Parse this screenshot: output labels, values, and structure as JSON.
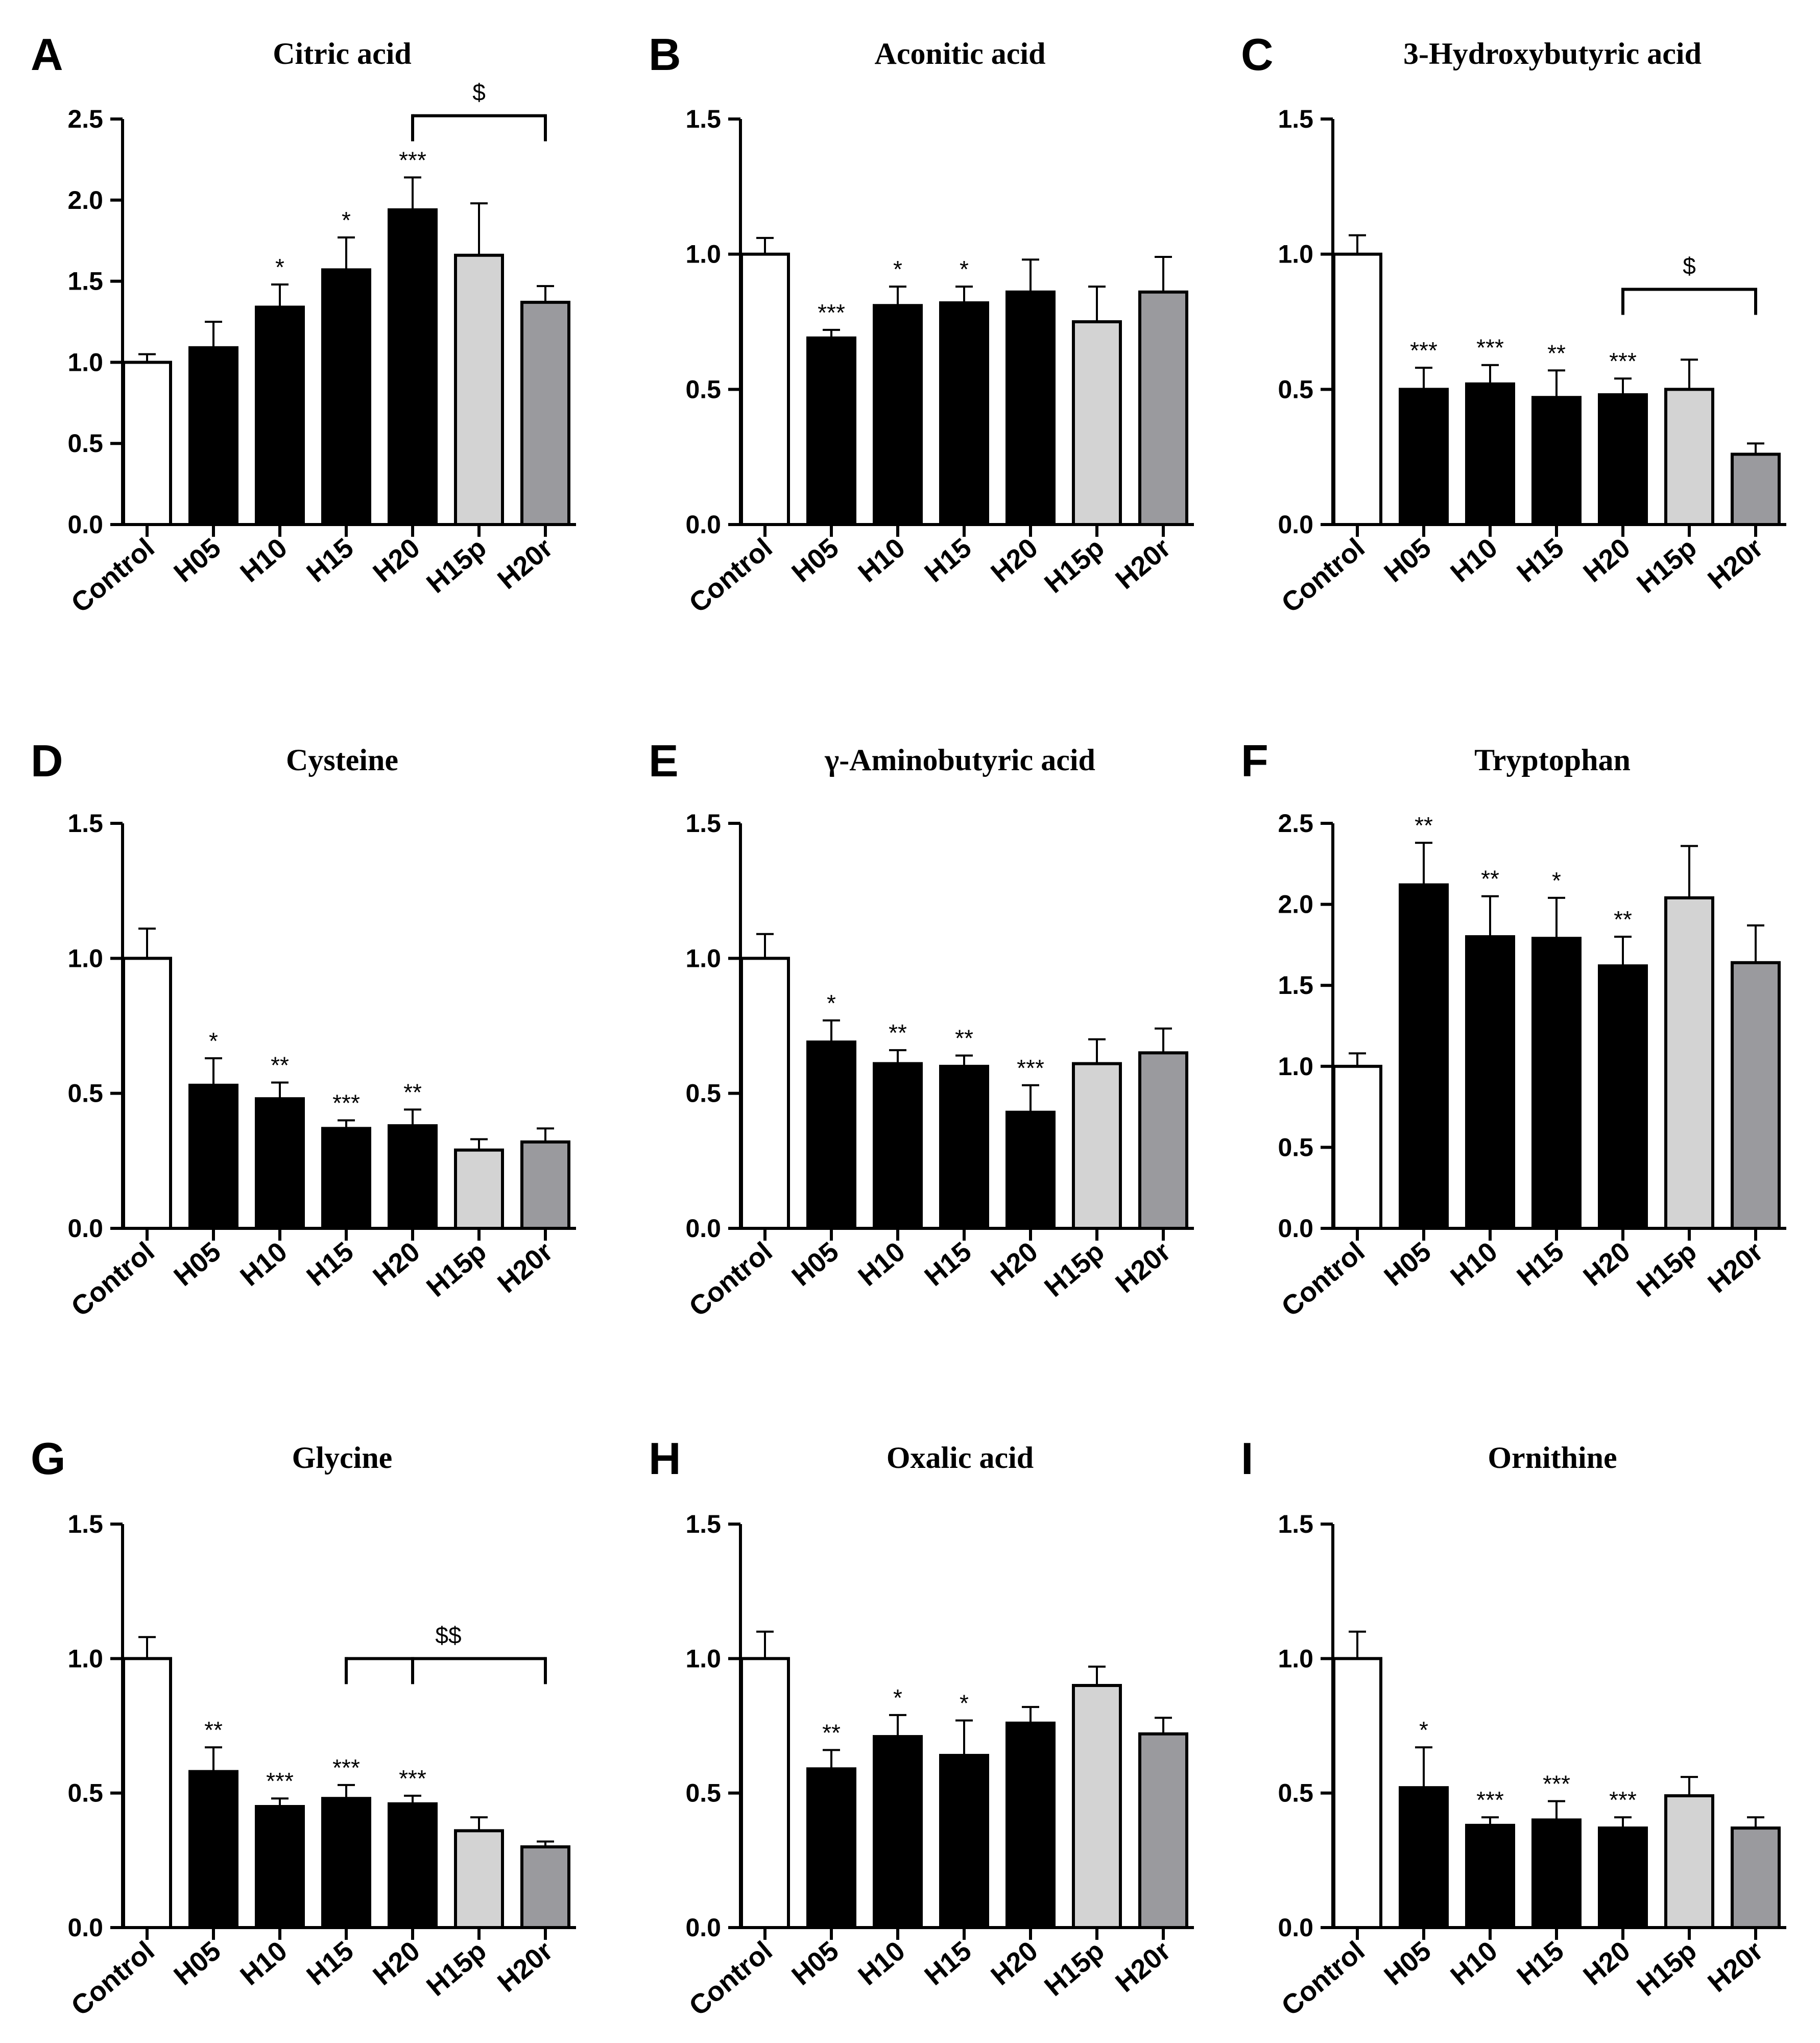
{
  "figure": {
    "categories": [
      "Control",
      "H05",
      "H10",
      "H15",
      "H20",
      "H15p",
      "H20r"
    ],
    "bar_fills": [
      "#ffffff",
      "#000000",
      "#000000",
      "#000000",
      "#000000",
      "#d3d3d3",
      "#9a9a9e"
    ]
  },
  "chart_data": [
    {
      "type": "bar",
      "panel": "A",
      "title": "Citric acid",
      "xlabel": "",
      "ylabel": "",
      "ylim": [
        0,
        2.5
      ],
      "yticks": [
        "0.0",
        "0.5",
        "1.0",
        "1.5",
        "2.0",
        "2.5"
      ],
      "categories": [
        "Control",
        "H05",
        "H10",
        "H15",
        "H20",
        "H15p",
        "H20r"
      ],
      "values": [
        1.0,
        1.09,
        1.34,
        1.57,
        1.94,
        1.66,
        1.37
      ],
      "errors": [
        0.05,
        0.16,
        0.14,
        0.2,
        0.2,
        0.32,
        0.1
      ],
      "significance": [
        "",
        "",
        "*",
        "*",
        "***",
        "",
        ""
      ],
      "brackets": [
        {
          "label": "$",
          "from": 4,
          "to": 6,
          "level": 2.52
        }
      ]
    },
    {
      "type": "bar",
      "panel": "B",
      "title": "Aconitic acid",
      "xlabel": "",
      "ylabel": "",
      "ylim": [
        0,
        1.5
      ],
      "yticks": [
        "0.0",
        "0.5",
        "1.0",
        "1.5"
      ],
      "categories": [
        "Control",
        "H05",
        "H10",
        "H15",
        "H20",
        "H15p",
        "H20r"
      ],
      "values": [
        1.0,
        0.69,
        0.81,
        0.82,
        0.86,
        0.75,
        0.86
      ],
      "errors": [
        0.06,
        0.03,
        0.07,
        0.06,
        0.12,
        0.13,
        0.13
      ],
      "significance": [
        "",
        "***",
        "*",
        "*",
        "",
        "",
        ""
      ],
      "brackets": []
    },
    {
      "type": "bar",
      "panel": "C",
      "title": "3-Hydroxybutyric acid",
      "xlabel": "",
      "ylabel": "",
      "ylim": [
        0,
        1.5
      ],
      "yticks": [
        "0.0",
        "0.5",
        "1.0",
        "1.5"
      ],
      "categories": [
        "Control",
        "H05",
        "H10",
        "H15",
        "H20",
        "H15p",
        "H20r"
      ],
      "values": [
        1.0,
        0.5,
        0.52,
        0.47,
        0.48,
        0.5,
        0.26
      ],
      "errors": [
        0.07,
        0.08,
        0.07,
        0.1,
        0.06,
        0.11,
        0.04
      ],
      "significance": [
        "",
        "***",
        "***",
        "**",
        "***",
        "",
        ""
      ],
      "brackets": [
        {
          "label": "$",
          "from": 4,
          "to": 6,
          "level": 0.87
        }
      ]
    },
    {
      "type": "bar",
      "panel": "D",
      "title": "Cysteine",
      "xlabel": "",
      "ylabel": "",
      "ylim": [
        0,
        1.5
      ],
      "yticks": [
        "0.0",
        "0.5",
        "1.0",
        "1.5"
      ],
      "categories": [
        "Control",
        "H05",
        "H10",
        "H15",
        "H20",
        "H15p",
        "H20r"
      ],
      "values": [
        1.0,
        0.53,
        0.48,
        0.37,
        0.38,
        0.29,
        0.32
      ],
      "errors": [
        0.11,
        0.1,
        0.06,
        0.03,
        0.06,
        0.04,
        0.05
      ],
      "significance": [
        "",
        "*",
        "**",
        "***",
        "**",
        "",
        ""
      ],
      "brackets": []
    },
    {
      "type": "bar",
      "panel": "E",
      "title": "γ-Aminobutyric acid",
      "xlabel": "",
      "ylabel": "",
      "ylim": [
        0,
        1.5
      ],
      "yticks": [
        "0.0",
        "0.5",
        "1.0",
        "1.5"
      ],
      "categories": [
        "Control",
        "H05",
        "H10",
        "H15",
        "H20",
        "H15p",
        "H20r"
      ],
      "values": [
        1.0,
        0.69,
        0.61,
        0.6,
        0.43,
        0.61,
        0.65
      ],
      "errors": [
        0.09,
        0.08,
        0.05,
        0.04,
        0.1,
        0.09,
        0.09
      ],
      "significance": [
        "",
        "*",
        "**",
        "**",
        "***",
        "",
        ""
      ],
      "brackets": []
    },
    {
      "type": "bar",
      "panel": "F",
      "title": "Tryptophan",
      "xlabel": "",
      "ylabel": "",
      "ylim": [
        0,
        2.5
      ],
      "yticks": [
        "0.0",
        "0.5",
        "1.0",
        "1.5",
        "2.0",
        "2.5"
      ],
      "categories": [
        "Control",
        "H05",
        "H10",
        "H15",
        "H20",
        "H15p",
        "H20r"
      ],
      "values": [
        1.0,
        2.12,
        1.8,
        1.79,
        1.62,
        2.04,
        1.64
      ],
      "errors": [
        0.08,
        0.26,
        0.25,
        0.25,
        0.18,
        0.32,
        0.23
      ],
      "significance": [
        "",
        "**",
        "**",
        "*",
        "**",
        "",
        ""
      ],
      "brackets": []
    },
    {
      "type": "bar",
      "panel": "G",
      "title": "Glycine",
      "xlabel": "",
      "ylabel": "",
      "ylim": [
        0,
        1.5
      ],
      "yticks": [
        "0.0",
        "0.5",
        "1.0",
        "1.5"
      ],
      "categories": [
        "Control",
        "H05",
        "H10",
        "H15",
        "H20",
        "H15p",
        "H20r"
      ],
      "values": [
        1.0,
        0.58,
        0.45,
        0.48,
        0.46,
        0.36,
        0.3
      ],
      "errors": [
        0.08,
        0.09,
        0.03,
        0.05,
        0.03,
        0.05,
        0.02
      ],
      "significance": [
        "",
        "**",
        "***",
        "***",
        "***",
        "",
        ""
      ],
      "brackets": [
        {
          "label": "$$",
          "from": 3,
          "to": 6,
          "mid": 4,
          "level": 1.0
        }
      ]
    },
    {
      "type": "bar",
      "panel": "H",
      "title": "Oxalic acid",
      "xlabel": "",
      "ylabel": "",
      "ylim": [
        0,
        1.5
      ],
      "yticks": [
        "0.0",
        "0.5",
        "1.0",
        "1.5"
      ],
      "categories": [
        "Control",
        "H05",
        "H10",
        "H15",
        "H20",
        "H15p",
        "H20r"
      ],
      "values": [
        1.0,
        0.59,
        0.71,
        0.64,
        0.76,
        0.9,
        0.72
      ],
      "errors": [
        0.1,
        0.07,
        0.08,
        0.13,
        0.06,
        0.07,
        0.06
      ],
      "significance": [
        "",
        "**",
        "*",
        "*",
        "",
        "",
        ""
      ],
      "brackets": []
    },
    {
      "type": "bar",
      "panel": "I",
      "title": "Ornithine",
      "xlabel": "",
      "ylabel": "",
      "ylim": [
        0,
        1.5
      ],
      "yticks": [
        "0.0",
        "0.5",
        "1.0",
        "1.5"
      ],
      "categories": [
        "Control",
        "H05",
        "H10",
        "H15",
        "H20",
        "H15p",
        "H20r"
      ],
      "values": [
        1.0,
        0.52,
        0.38,
        0.4,
        0.37,
        0.49,
        0.37
      ],
      "errors": [
        0.1,
        0.15,
        0.03,
        0.07,
        0.04,
        0.07,
        0.04
      ],
      "significance": [
        "",
        "*",
        "***",
        "***",
        "***",
        "",
        ""
      ],
      "brackets": []
    }
  ]
}
